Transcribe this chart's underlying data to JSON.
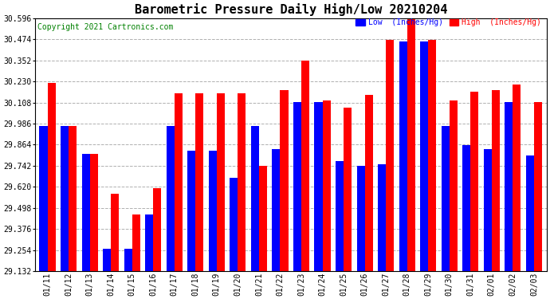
{
  "title": "Barometric Pressure Daily High/Low 20210204",
  "copyright": "Copyright 2021 Cartronics.com",
  "legend_low": "Low  (Inches/Hg)",
  "legend_high": "High  (Inches/Hg)",
  "dates": [
    "01/11",
    "01/12",
    "01/13",
    "01/14",
    "01/15",
    "01/16",
    "01/17",
    "01/18",
    "01/19",
    "01/20",
    "01/21",
    "01/22",
    "01/23",
    "01/24",
    "01/25",
    "01/26",
    "01/27",
    "01/28",
    "01/29",
    "01/30",
    "01/31",
    "02/01",
    "02/02",
    "02/03"
  ],
  "low_values": [
    29.97,
    29.97,
    29.81,
    29.26,
    29.26,
    29.46,
    29.97,
    29.83,
    29.83,
    29.67,
    29.97,
    29.84,
    30.11,
    30.11,
    29.77,
    29.74,
    29.75,
    30.46,
    30.46,
    29.97,
    29.86,
    29.84,
    30.11,
    29.8
  ],
  "high_values": [
    30.22,
    29.97,
    29.81,
    29.58,
    29.46,
    29.61,
    30.16,
    30.16,
    30.16,
    30.16,
    29.74,
    30.18,
    30.35,
    30.12,
    30.08,
    30.15,
    30.47,
    30.6,
    30.47,
    30.12,
    30.17,
    30.18,
    30.21,
    30.11
  ],
  "y_min": 29.132,
  "y_max": 30.596,
  "y_ticks": [
    29.132,
    29.254,
    29.376,
    29.498,
    29.62,
    29.742,
    29.864,
    29.986,
    30.108,
    30.23,
    30.352,
    30.474,
    30.596
  ],
  "bar_width": 0.38,
  "low_color": "#0000ff",
  "high_color": "#ff0000",
  "bg_color": "#ffffff",
  "grid_color": "#b0b0b0",
  "title_fontsize": 11,
  "tick_fontsize": 7,
  "copyright_fontsize": 7
}
